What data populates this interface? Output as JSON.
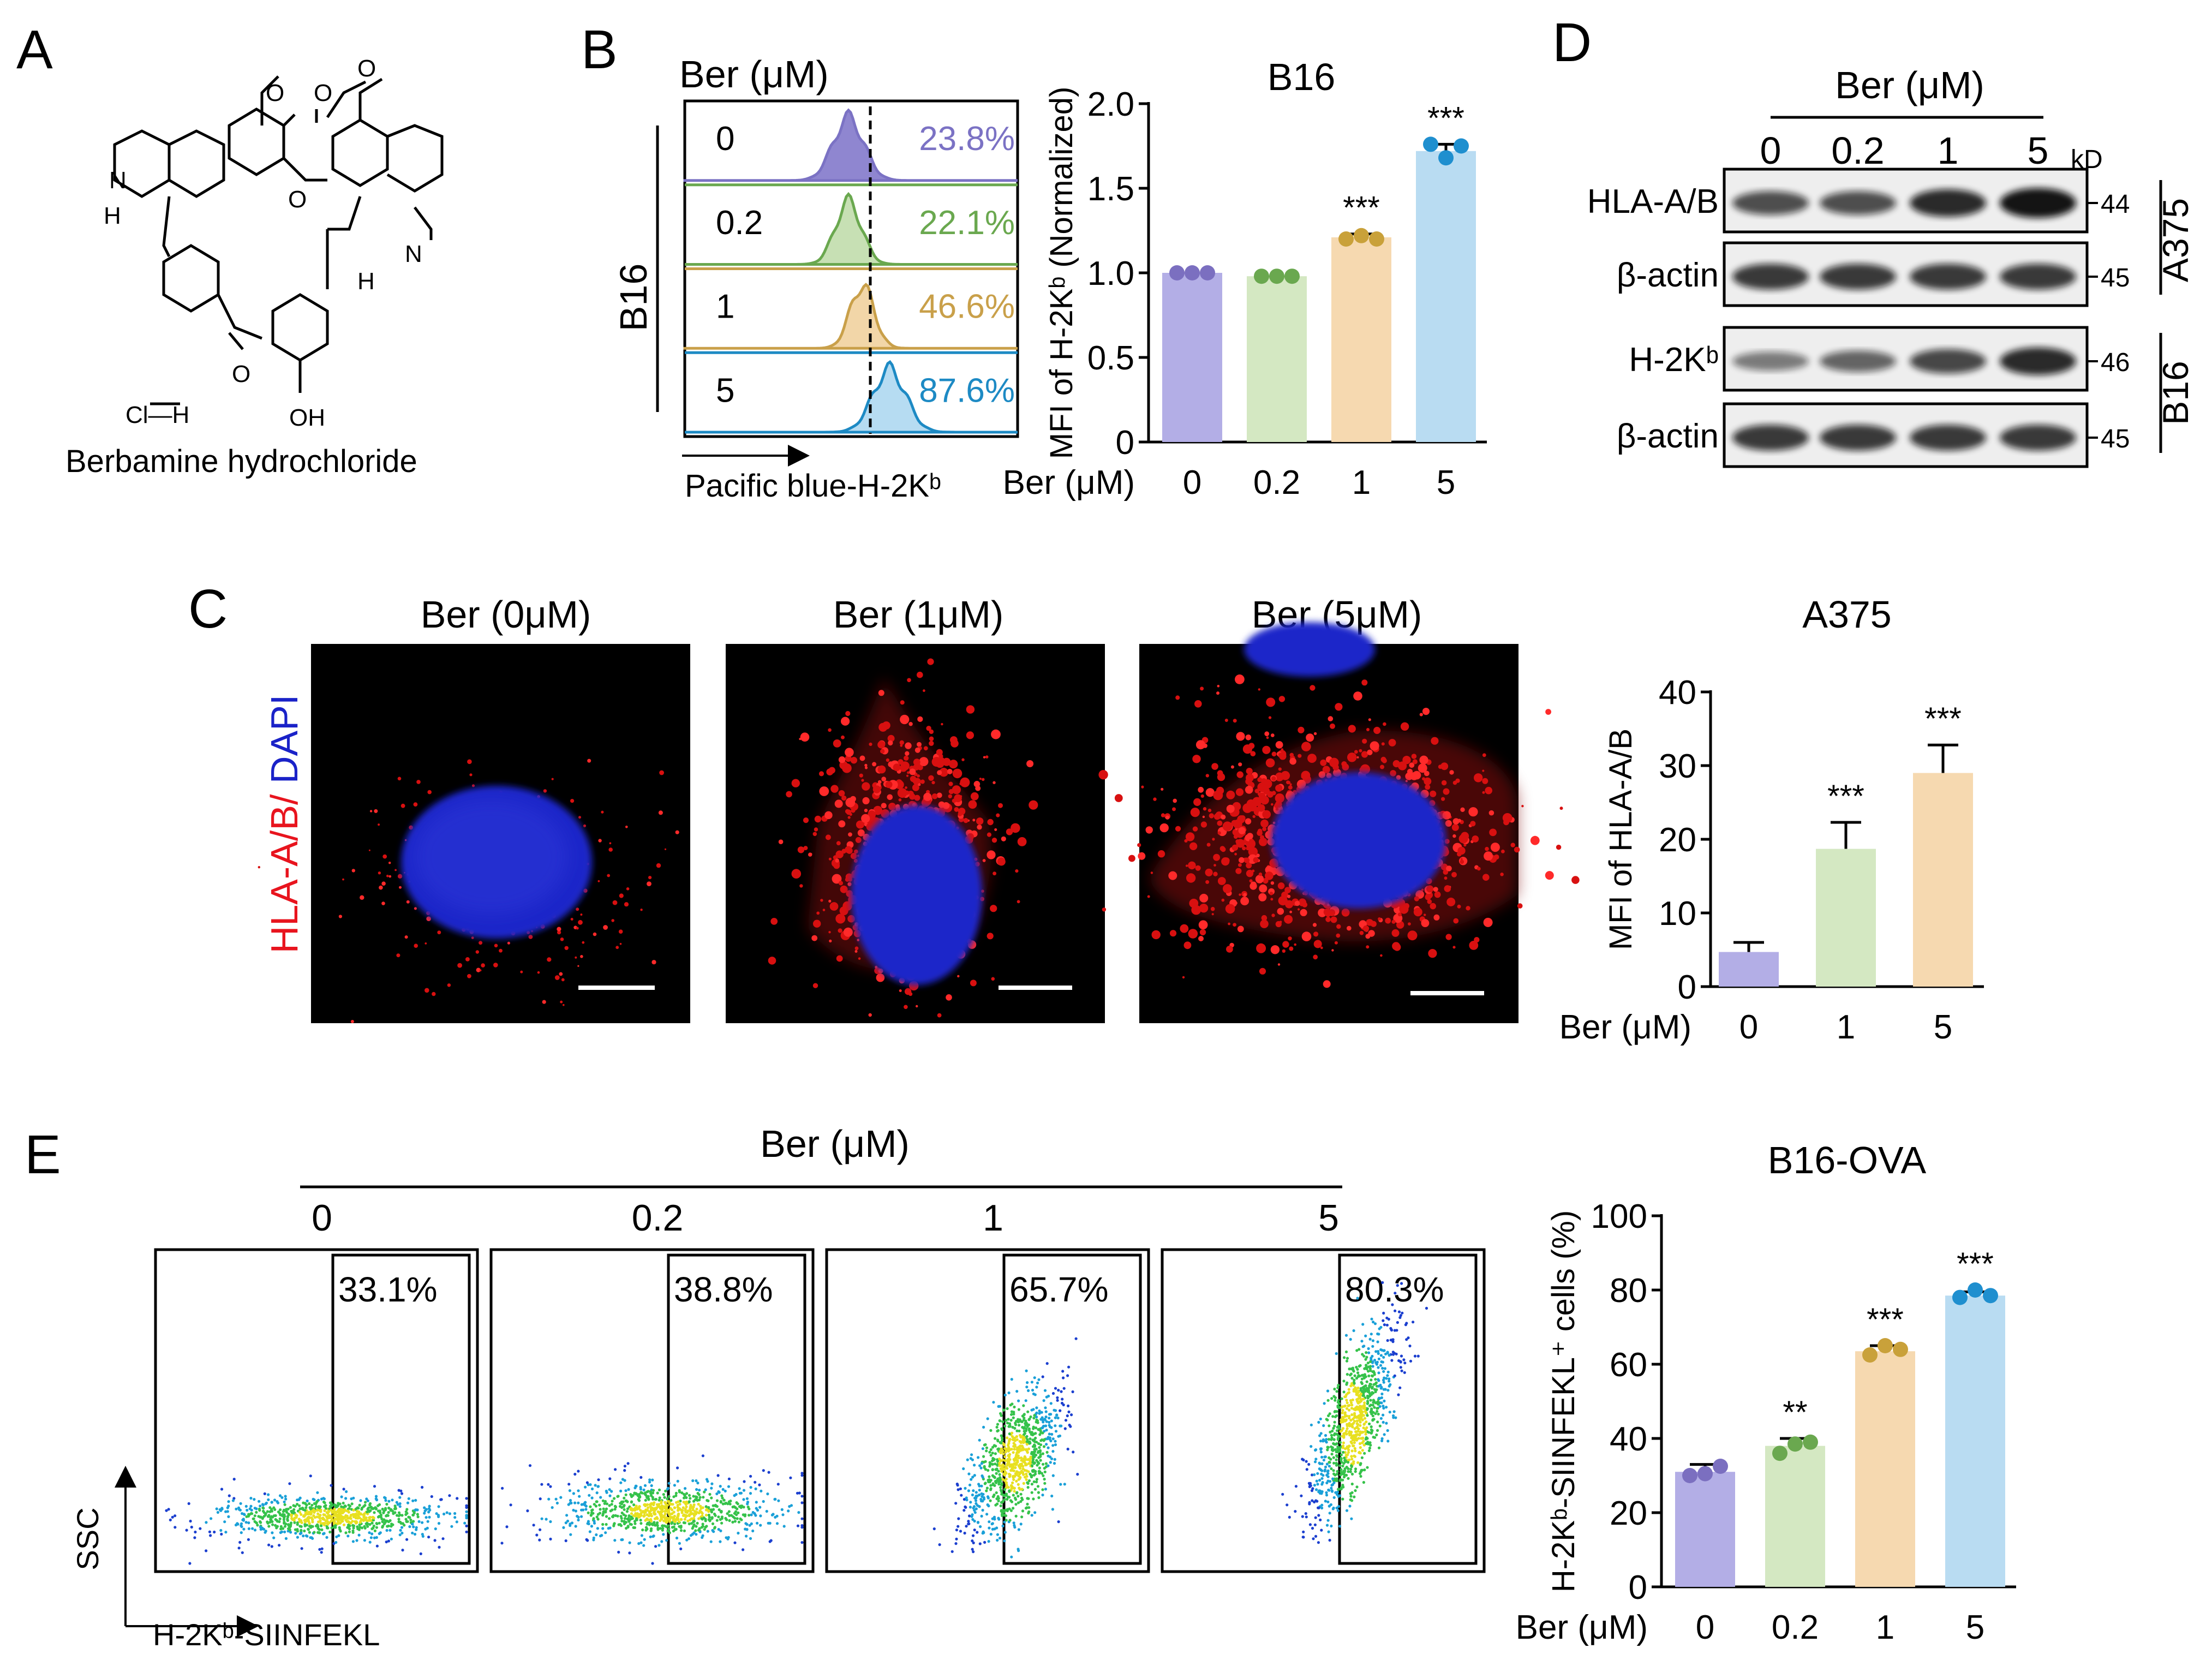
{
  "panels": {
    "a": "A",
    "b": "B",
    "c": "C",
    "d": "D",
    "e": "E"
  },
  "panel_a": {
    "atoms": {
      "methoxy1": "O",
      "methoxy2": "O",
      "methoxy3": "O",
      "bridge_o1": "O",
      "bridge_o2": "O",
      "n1": "N",
      "n2": "N",
      "h1": "H",
      "h2": "H",
      "hcl": "Cl—H",
      "oh": "OH"
    },
    "compound_name": "Berbamine hydrochloride"
  },
  "panel_b": {
    "hist_header": "Ber (μM)",
    "cell_line": "B16",
    "x_axis_label": "Pacific blue-H-2Kᵇ",
    "rows": [
      {
        "dose": "0",
        "percent": "23.8%",
        "color": "#7b72c4",
        "fill": "#8f86d0"
      },
      {
        "dose": "0.2",
        "percent": "22.1%",
        "color": "#6aa84f",
        "fill": "#c7e0b4"
      },
      {
        "dose": "1",
        "percent": "46.6%",
        "color": "#c9a04a",
        "fill": "#f2d6a8"
      },
      {
        "dose": "5",
        "percent": "87.6%",
        "color": "#1d8ac4",
        "fill": "#b6dcf2"
      }
    ]
  },
  "panel_d": {
    "header": "Ber (μM)",
    "doses": [
      "0",
      "0.2",
      "1",
      "5"
    ],
    "kd_label": "kD",
    "rows": [
      {
        "label": "HLA-A/B",
        "kd": "44"
      },
      {
        "label": "β-actin",
        "kd": "45"
      },
      {
        "label": "H-2Kᵇ",
        "kd": "46"
      },
      {
        "label": "β-actin",
        "kd": "45"
      }
    ],
    "groups": [
      "A375",
      "B16"
    ]
  },
  "panel_c": {
    "side_label_red": "HLA-A/B/",
    "side_label_blue": " DAPI",
    "images": [
      {
        "title": "Ber (0μM)"
      },
      {
        "title": "Ber (1μM)"
      },
      {
        "title": "Ber (5μM)"
      }
    ]
  },
  "panel_e": {
    "header": "Ber (μM)",
    "doses": [
      "0",
      "0.2",
      "1",
      "5"
    ],
    "gates": [
      "33.1%",
      "38.8%",
      "65.7%",
      "80.3%"
    ],
    "y_axis": "SSC",
    "x_axis": "H-2Kᵇ-SIINFEKL"
  },
  "colors": {
    "purple": "#b3aee6",
    "purple_dot": "#7b6fc0",
    "green": "#d4e8c2",
    "green_dot": "#6aa84f",
    "orange": "#f6d9b0",
    "orange_dot": "#c9a13a",
    "blue": "#b9dcf2",
    "blue_dot": "#1f8fcf"
  },
  "chart_data": [
    {
      "id": "b16",
      "type": "bar",
      "title": "B16",
      "xlabel": "Ber (μM)",
      "ylabel": "MFI of H-2Kᵇ (Normalized)",
      "categories": [
        "0",
        "0.2",
        "1",
        "5"
      ],
      "values": [
        1.0,
        0.98,
        1.21,
        1.72
      ],
      "errors": [
        0.0,
        0.0,
        0.02,
        0.04
      ],
      "points": [
        [
          1.0,
          1.0,
          1.0
        ],
        [
          0.98,
          0.98,
          0.98
        ],
        [
          1.2,
          1.22,
          1.2
        ],
        [
          1.76,
          1.68,
          1.75
        ]
      ],
      "significance": [
        "",
        "",
        "***",
        "***"
      ],
      "ylim": [
        0,
        2.0
      ],
      "yticks": [
        0,
        0.5,
        1.0,
        1.5,
        2.0
      ],
      "ytick_labels": [
        "0",
        "0.5",
        "1.0",
        "1.5",
        "2.0"
      ]
    },
    {
      "id": "a375",
      "type": "bar",
      "title": "A375",
      "xlabel": "Ber (μM)",
      "ylabel": "MFI of HLA-A/B",
      "categories": [
        "0",
        "1",
        "5"
      ],
      "values": [
        4.7,
        18.7,
        29.0
      ],
      "errors": [
        1.3,
        3.6,
        3.8
      ],
      "points": [],
      "significance": [
        "",
        "***",
        "***"
      ],
      "ylim": [
        0,
        40
      ],
      "yticks": [
        0,
        10,
        20,
        30,
        40
      ],
      "ytick_labels": [
        "0",
        "10",
        "20",
        "30",
        "40"
      ]
    },
    {
      "id": "b16ova",
      "type": "bar",
      "title": "B16-OVA",
      "xlabel": "Ber (μM)",
      "ylabel": "H-2Kᵇ-SIINFEKL⁺ cells (%)",
      "categories": [
        "0",
        "0.2",
        "1",
        "5"
      ],
      "values": [
        31.0,
        38.0,
        63.5,
        78.5
      ],
      "errors": [
        2.0,
        2.0,
        1.5,
        1.0
      ],
      "points": [
        [
          30.0,
          30.5,
          32.5
        ],
        [
          36.0,
          38.5,
          39.0
        ],
        [
          62.5,
          65.0,
          64.0
        ],
        [
          78.0,
          80.0,
          78.5
        ]
      ],
      "significance": [
        "",
        "**",
        "***",
        "***"
      ],
      "ylim": [
        0,
        100
      ],
      "yticks": [
        0,
        20,
        40,
        60,
        80,
        100
      ],
      "ytick_labels": [
        "0",
        "20",
        "40",
        "60",
        "80",
        "100"
      ]
    }
  ]
}
